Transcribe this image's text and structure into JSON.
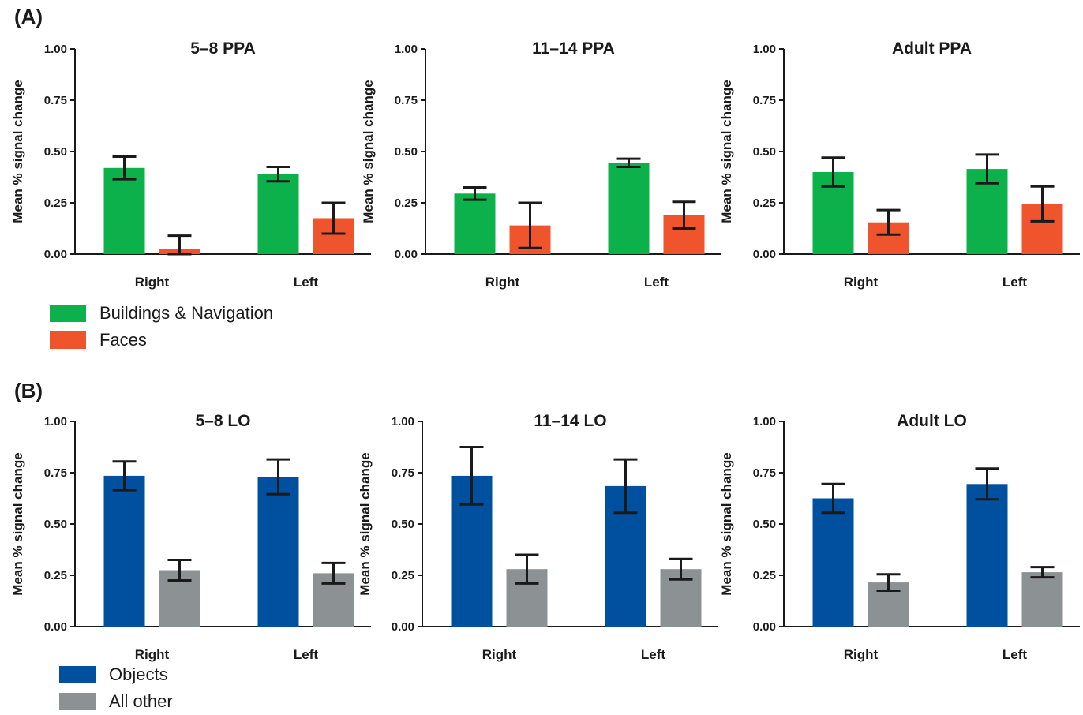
{
  "panels": [
    {
      "label": "(A)",
      "legend": [
        {
          "name": "Buildings & Navigation",
          "color": "#0DB14B"
        },
        {
          "name": "Faces",
          "color": "#F0542D"
        }
      ]
    },
    {
      "label": "(B)",
      "legend": [
        {
          "name": "Objects",
          "color": "#0050A0"
        },
        {
          "name": "All other",
          "color": "#8C9194"
        }
      ]
    }
  ],
  "chart_data": [
    {
      "type": "bar",
      "panel": "A",
      "title": "5–8 PPA",
      "categories": [
        "Right",
        "Left"
      ],
      "ylabel": "Mean % signal change",
      "ylim": [
        0,
        1
      ],
      "yticks": [
        "0.00",
        "0.25",
        "0.50",
        "0.75",
        "1.00"
      ],
      "series": [
        {
          "name": "Buildings & Navigation",
          "color": "#0DB14B",
          "values": [
            0.42,
            0.39
          ],
          "errors": [
            0.055,
            0.035
          ]
        },
        {
          "name": "Faces",
          "color": "#F0542D",
          "values": [
            0.025,
            0.175
          ],
          "errors": [
            0.065,
            0.075
          ]
        }
      ]
    },
    {
      "type": "bar",
      "panel": "A",
      "title": "11–14 PPA",
      "categories": [
        "Right",
        "Left"
      ],
      "ylabel": "Mean % signal change",
      "ylim": [
        0,
        1
      ],
      "yticks": [
        "0.00",
        "0.25",
        "0.50",
        "0.75",
        "1.00"
      ],
      "series": [
        {
          "name": "Buildings & Navigation",
          "color": "#0DB14B",
          "values": [
            0.295,
            0.445
          ],
          "errors": [
            0.03,
            0.02
          ]
        },
        {
          "name": "Faces",
          "color": "#F0542D",
          "values": [
            0.14,
            0.19
          ],
          "errors": [
            0.11,
            0.065
          ]
        }
      ]
    },
    {
      "type": "bar",
      "panel": "A",
      "title": "Adult PPA",
      "categories": [
        "Right",
        "Left"
      ],
      "ylabel": "Mean % signal change",
      "ylim": [
        0,
        1
      ],
      "yticks": [
        "0.00",
        "0.25",
        "0.50",
        "0.75",
        "1.00"
      ],
      "series": [
        {
          "name": "Buildings & Navigation",
          "color": "#0DB14B",
          "values": [
            0.4,
            0.415
          ],
          "errors": [
            0.07,
            0.07
          ]
        },
        {
          "name": "Faces",
          "color": "#F0542D",
          "values": [
            0.155,
            0.245
          ],
          "errors": [
            0.06,
            0.085
          ]
        }
      ]
    },
    {
      "type": "bar",
      "panel": "B",
      "title": "5–8 LO",
      "categories": [
        "Right",
        "Left"
      ],
      "ylabel": "Mean % signal change",
      "ylim": [
        0,
        1
      ],
      "yticks": [
        "0.00",
        "0.25",
        "0.50",
        "0.75",
        "1.00"
      ],
      "series": [
        {
          "name": "Objects",
          "color": "#0050A0",
          "values": [
            0.735,
            0.73
          ],
          "errors": [
            0.07,
            0.085
          ]
        },
        {
          "name": "All other",
          "color": "#8C9194",
          "values": [
            0.275,
            0.26
          ],
          "errors": [
            0.05,
            0.05
          ]
        }
      ]
    },
    {
      "type": "bar",
      "panel": "B",
      "title": "11–14 LO",
      "categories": [
        "Right",
        "Left"
      ],
      "ylabel": "Mean % signal change",
      "ylim": [
        0,
        1
      ],
      "yticks": [
        "0.00",
        "0.25",
        "0.50",
        "0.75",
        "1.00"
      ],
      "series": [
        {
          "name": "Objects",
          "color": "#0050A0",
          "values": [
            0.735,
            0.685
          ],
          "errors": [
            0.14,
            0.13
          ]
        },
        {
          "name": "All other",
          "color": "#8C9194",
          "values": [
            0.28,
            0.28
          ],
          "errors": [
            0.07,
            0.05
          ]
        }
      ]
    },
    {
      "type": "bar",
      "panel": "B",
      "title": "Adult LO",
      "categories": [
        "Right",
        "Left"
      ],
      "ylabel": "Mean % signal change",
      "ylim": [
        0,
        1
      ],
      "yticks": [
        "0.00",
        "0.25",
        "0.50",
        "0.75",
        "1.00"
      ],
      "series": [
        {
          "name": "Objects",
          "color": "#0050A0",
          "values": [
            0.625,
            0.695
          ],
          "errors": [
            0.07,
            0.075
          ]
        },
        {
          "name": "All other",
          "color": "#8C9194",
          "values": [
            0.215,
            0.265
          ],
          "errors": [
            0.04,
            0.025
          ]
        }
      ]
    }
  ]
}
